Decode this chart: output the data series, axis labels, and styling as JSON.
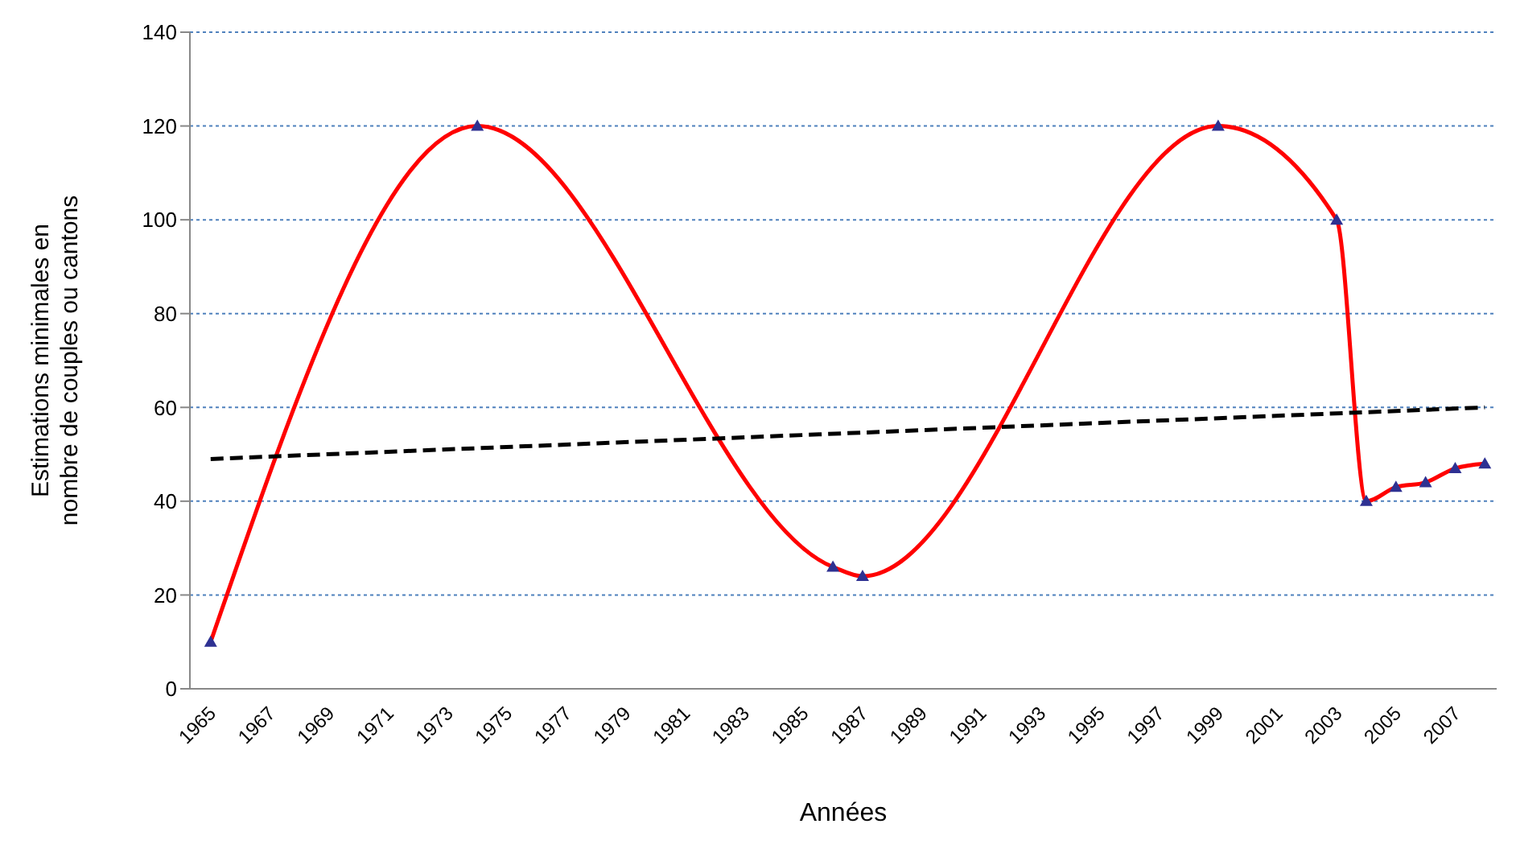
{
  "chart_data": {
    "type": "line",
    "xlabel": "Années",
    "ylabel": "Estimations minimales en nombre de couples ou cantons",
    "series": [
      {
        "color": "#ff0000",
        "marker": "triangle",
        "x": [
          1965,
          1974,
          1986,
          1987,
          1999,
          2003,
          2004,
          2005,
          2006,
          2007,
          2008
        ],
        "values": [
          10,
          120,
          26,
          24,
          120,
          100,
          40,
          43,
          44,
          47,
          48
        ]
      },
      {
        "color": "#000000",
        "marker": "none",
        "line_style": "dashed",
        "x": [
          1965,
          2008
        ],
        "values": [
          49,
          60
        ]
      }
    ],
    "xlim": [
      1964.3,
      2008.4
    ],
    "xticks": [
      1965,
      1967,
      1969,
      1971,
      1973,
      1975,
      1977,
      1979,
      1981,
      1983,
      1985,
      1987,
      1989,
      1991,
      1993,
      1995,
      1997,
      1999,
      2001,
      2003,
      2005,
      2007
    ],
    "ylim": [
      0,
      140
    ],
    "yticks": [
      0,
      20,
      40,
      60,
      80,
      100,
      120,
      140
    ],
    "grid": "y",
    "legend": false
  }
}
